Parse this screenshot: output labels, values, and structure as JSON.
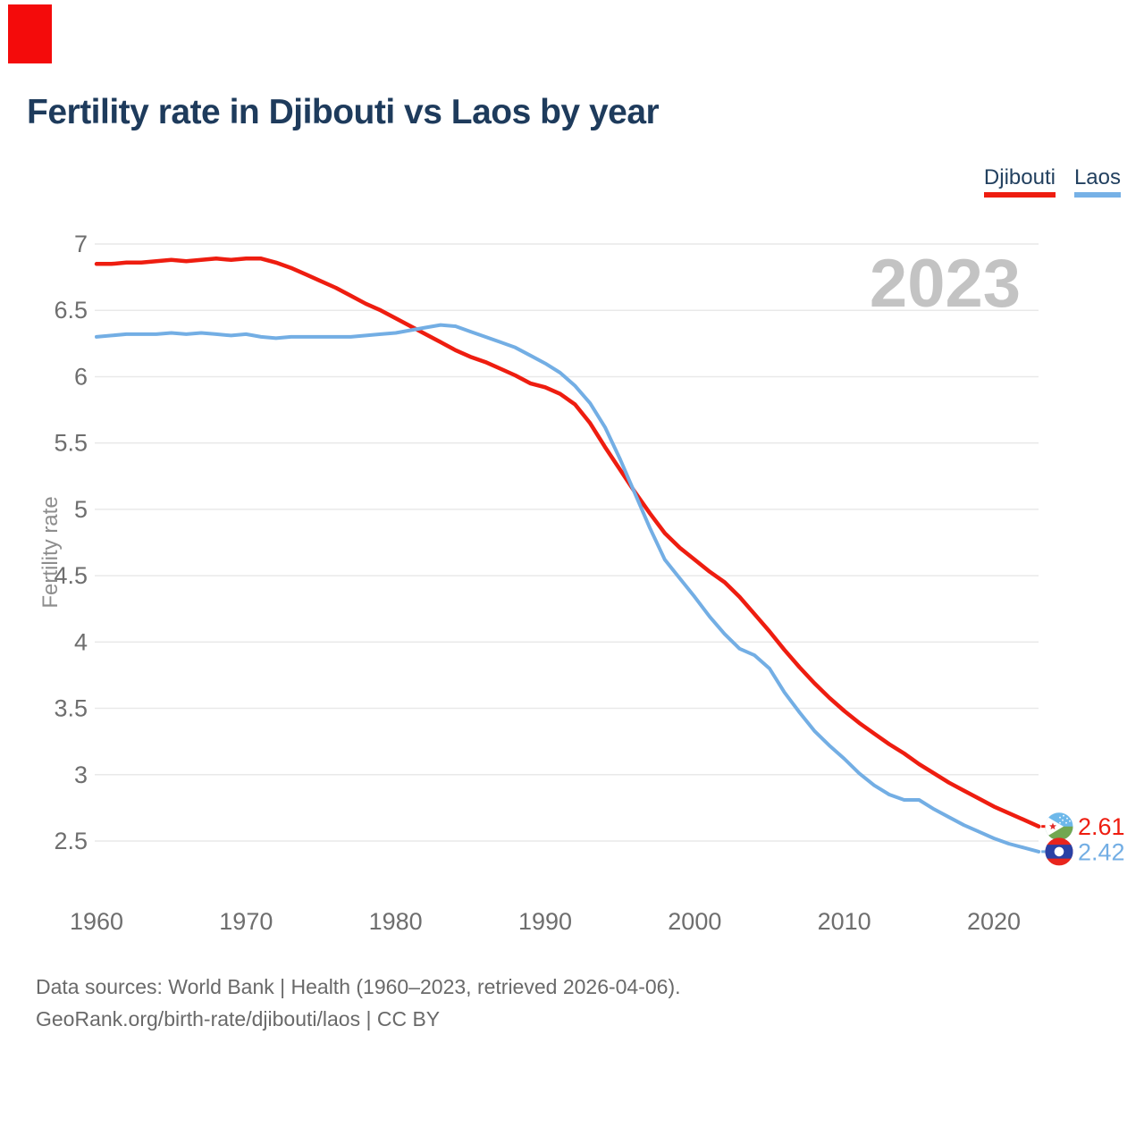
{
  "page": {
    "title": "Fertility rate in Djibouti vs Laos by year",
    "watermark_year": "2023",
    "marker_color": "#f40b0b",
    "footer_line1": "Data sources: World Bank | Health (1960–2023, retrieved 2026-04-06).",
    "footer_line2": "GeoRank.org/birth-rate/djibouti/laos | CC BY"
  },
  "legend": [
    {
      "label": "Djibouti",
      "color": "#ee1d10"
    },
    {
      "label": "Laos",
      "color": "#76b1e6"
    }
  ],
  "chart_data": {
    "type": "line",
    "title": "Fertility rate in Djibouti vs Laos by year",
    "xlabel": "",
    "ylabel": "Fertility rate",
    "xlim": [
      1960,
      2023
    ],
    "ylim": [
      2.5,
      7
    ],
    "grid": "horizontal",
    "legend_position": "top-right",
    "yticks": [
      7,
      6.5,
      6,
      5.5,
      5,
      4.5,
      4,
      3.5,
      3,
      2.5
    ],
    "xticks": [
      1960,
      1970,
      1980,
      1990,
      2000,
      2010,
      2020
    ],
    "x": [
      1960,
      1961,
      1962,
      1963,
      1964,
      1965,
      1966,
      1967,
      1968,
      1969,
      1970,
      1971,
      1972,
      1973,
      1974,
      1975,
      1976,
      1977,
      1978,
      1979,
      1980,
      1981,
      1982,
      1983,
      1984,
      1985,
      1986,
      1987,
      1988,
      1989,
      1990,
      1991,
      1992,
      1993,
      1994,
      1995,
      1996,
      1997,
      1998,
      1999,
      2000,
      2001,
      2002,
      2003,
      2004,
      2005,
      2006,
      2007,
      2008,
      2009,
      2010,
      2011,
      2012,
      2013,
      2014,
      2015,
      2016,
      2017,
      2018,
      2019,
      2020,
      2021,
      2022,
      2023
    ],
    "series": [
      {
        "name": "Djibouti",
        "color": "#ee1d10",
        "end_label": "2.61",
        "values": [
          6.85,
          6.85,
          6.86,
          6.86,
          6.87,
          6.88,
          6.87,
          6.88,
          6.89,
          6.88,
          6.89,
          6.89,
          6.86,
          6.82,
          6.77,
          6.72,
          6.67,
          6.61,
          6.55,
          6.5,
          6.44,
          6.38,
          6.32,
          6.26,
          6.2,
          6.15,
          6.11,
          6.06,
          6.01,
          5.95,
          5.92,
          5.87,
          5.79,
          5.65,
          5.47,
          5.3,
          5.13,
          4.97,
          4.82,
          4.71,
          4.62,
          4.53,
          4.45,
          4.34,
          4.21,
          4.08,
          3.94,
          3.81,
          3.69,
          3.58,
          3.48,
          3.39,
          3.31,
          3.23,
          3.16,
          3.08,
          3.01,
          2.94,
          2.88,
          2.82,
          2.76,
          2.71,
          2.66,
          2.61
        ]
      },
      {
        "name": "Laos",
        "color": "#73aee4",
        "end_label": "2.42",
        "values": [
          6.3,
          6.31,
          6.32,
          6.32,
          6.32,
          6.33,
          6.32,
          6.33,
          6.32,
          6.31,
          6.32,
          6.3,
          6.29,
          6.3,
          6.3,
          6.3,
          6.3,
          6.3,
          6.31,
          6.32,
          6.33,
          6.35,
          6.37,
          6.39,
          6.38,
          6.34,
          6.3,
          6.26,
          6.22,
          6.16,
          6.1,
          6.03,
          5.93,
          5.8,
          5.62,
          5.38,
          5.12,
          4.86,
          4.62,
          4.48,
          4.34,
          4.19,
          4.06,
          3.95,
          3.9,
          3.8,
          3.62,
          3.47,
          3.33,
          3.22,
          3.12,
          3.01,
          2.92,
          2.85,
          2.81,
          2.81,
          2.74,
          2.68,
          2.62,
          2.57,
          2.52,
          2.48,
          2.45,
          2.42
        ]
      }
    ]
  }
}
